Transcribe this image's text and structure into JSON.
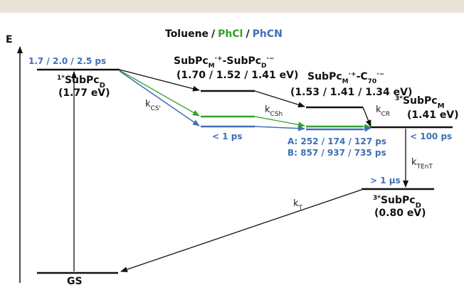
{
  "colors": {
    "black": "#111111",
    "blue": "#3f6fb5",
    "green": "#33a02c",
    "band": "#e8e3d6"
  },
  "header": {
    "toluene": "Toluene",
    "sep1": "/",
    "phcl": "PhCl",
    "sep2": "/",
    "phcn": "PhCN"
  },
  "axis": {
    "label": "E"
  },
  "levels": {
    "s1": {
      "lifetimes": "1.7 / 2.0 / 2.5 ps",
      "name": "1*SubPcD",
      "name_parts": {
        "sup": "1*",
        "base": "SubPc",
        "sub": "D"
      },
      "energy": "(1.77 eV)"
    },
    "cs_dimer": {
      "name": "SubPcM·+-SubPcD·−",
      "energy": "(1.70 / 1.52 / 1.41 eV)"
    },
    "cs_c70": {
      "name": "SubPcM·+-C70·−",
      "energy": "(1.53 / 1.41 / 1.34 eV)"
    },
    "t1m": {
      "name": "3*SubPcM",
      "name_parts": {
        "sup": "3*",
        "base": "SubPc",
        "sub": "M"
      },
      "energy": "(1.41 eV)",
      "lifetime": "< 100 ps"
    },
    "t1d": {
      "lifetime": "> 1 μs",
      "name": "3*SubPcD",
      "name_parts": {
        "sup": "3*",
        "base": "SubPc",
        "sub": "D"
      },
      "energy": "(0.80 eV)"
    },
    "gs": {
      "name": "GS"
    }
  },
  "rates": {
    "kcs": {
      "base": "k",
      "sub": "CS'"
    },
    "kcsh": {
      "base": "k",
      "sub": "CSh"
    },
    "kcr": {
      "base": "k",
      "sub": "CR"
    },
    "ktent": {
      "base": "k",
      "sub": "TEnT"
    },
    "kt": {
      "base": "k",
      "sub": "T"
    }
  },
  "timings": {
    "cs_fast": "< 1 ps",
    "a_line": "A: 252 / 174 / 127 ps",
    "b_line": "B: 857 / 937 / 735 ps"
  }
}
